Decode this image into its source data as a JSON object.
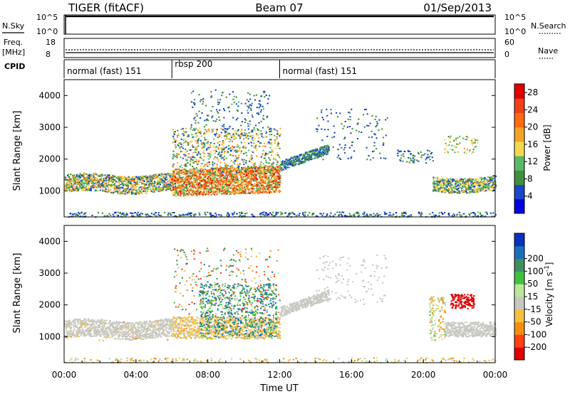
{
  "header": {
    "left": "TIGER (fitACF)",
    "center": "Beam 07",
    "right": "01/Sep/2013"
  },
  "noise_panel": {
    "left_label": "N.Sky",
    "right_label": "N.Search",
    "ticks": [
      "10^5",
      "10^0"
    ],
    "sky_level": 0.97
  },
  "freq_panel": {
    "left_label": "Freq.",
    "left_unit": "[MHz]",
    "right_label": "Nave",
    "left_ticks": [
      "18",
      "8"
    ],
    "right_ticks": [
      "60",
      "0"
    ],
    "freq_level": 0.35,
    "nave_level": 0.5
  },
  "cpid_panel": {
    "label": "CPID",
    "segments": [
      {
        "name": "normal (fast) 151",
        "start": 0,
        "end": 6
      },
      {
        "name": "rbsp 200",
        "start": 6,
        "end": 12
      },
      {
        "name": "normal (fast) 151",
        "start": 12,
        "end": 24
      }
    ]
  },
  "colors": {
    "power": [
      "#0000e0",
      "#1848c8",
      "#3f8f3f",
      "#5ab86a",
      "#f4d84e",
      "#f3a326",
      "#ff6a10",
      "#f0401a",
      "#e00000"
    ],
    "velocity": [
      "#e00000",
      "#ff4010",
      "#f58d10",
      "#f4c040",
      "#c8c8c0",
      "#b8e898",
      "#40c040",
      "#3f8f5f",
      "#1a70b8",
      "#0a30c0"
    ]
  },
  "chart_data": [
    {
      "type": "heatmap",
      "name": "power",
      "ylabel": "Slant Range [km]",
      "ylim": [
        180,
        4500
      ],
      "y_ticks": [
        1000,
        2000,
        3000,
        4000
      ],
      "colorbar": {
        "label": "Power [dB]",
        "ticks": [
          4,
          8,
          12,
          16,
          20,
          24,
          28
        ],
        "range": [
          0,
          30
        ]
      },
      "features": [
        {
          "x_hours": [
            0,
            6
          ],
          "range_km": [
            900,
            1500
          ],
          "value": 12
        },
        {
          "x_hours": [
            6,
            12
          ],
          "range_km": [
            800,
            1600
          ],
          "value": 22
        },
        {
          "x_hours": [
            12,
            14.5
          ],
          "range_km": [
            1600,
            2100
          ],
          "value": 8
        },
        {
          "x_hours": [
            20.5,
            24
          ],
          "range_km": [
            900,
            1500
          ],
          "value": 14
        }
      ]
    },
    {
      "type": "heatmap",
      "name": "velocity",
      "ylabel": "Slant Range [km]",
      "ylim": [
        180,
        4500
      ],
      "y_ticks": [
        1000,
        2000,
        3000,
        4000
      ],
      "colorbar": {
        "label": "Velocity [m s^-1]",
        "ticks": [
          -200,
          -100,
          -50,
          -15,
          15,
          50,
          100,
          200
        ]
      },
      "features": [
        {
          "x_hours": [
            0,
            6
          ],
          "range_km": [
            900,
            1500
          ],
          "value": 0
        },
        {
          "x_hours": [
            7.5,
            11.5
          ],
          "range_km": [
            900,
            2700
          ],
          "value": 180
        },
        {
          "x_hours": [
            21,
            22.5
          ],
          "range_km": [
            1900,
            2300
          ],
          "value": -220
        }
      ]
    }
  ],
  "xaxis": {
    "ticks": [
      "00:00",
      "04:00",
      "08:00",
      "12:00",
      "16:00",
      "20:00",
      "00:00"
    ],
    "label": "Time UT"
  }
}
